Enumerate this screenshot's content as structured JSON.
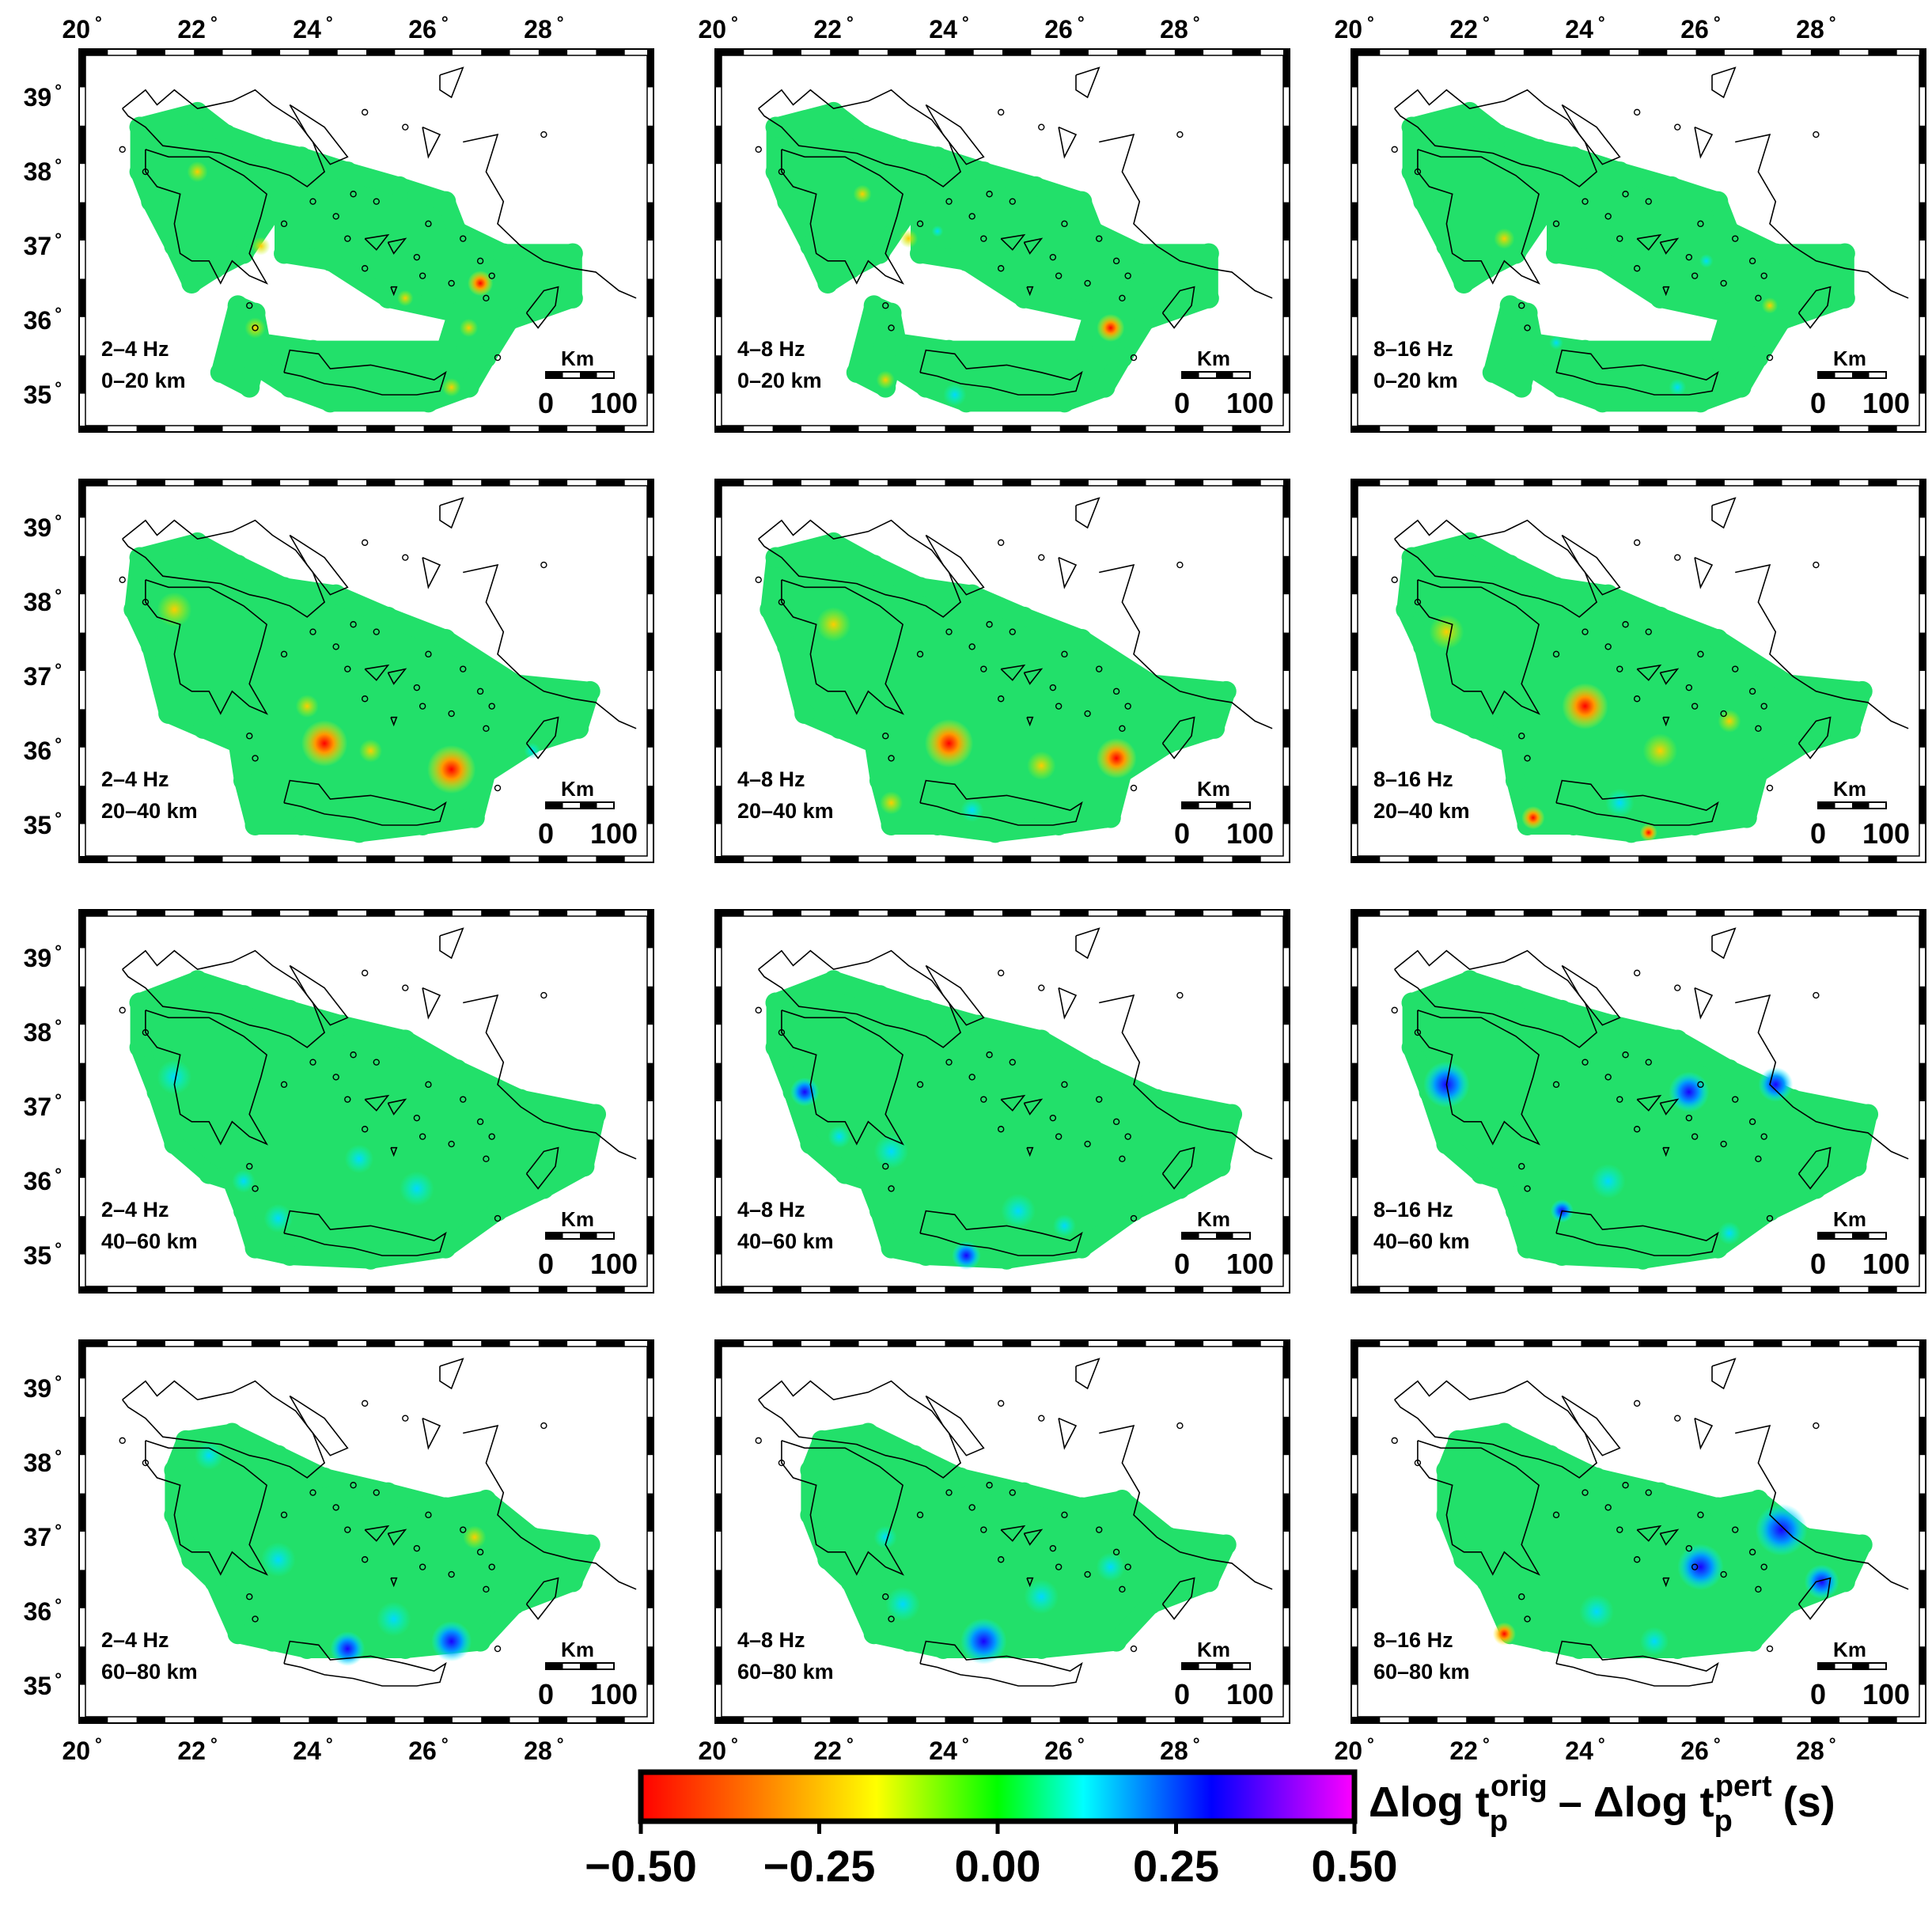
{
  "lon_ticks": [
    "20",
    "22",
    "24",
    "26",
    "28"
  ],
  "lat_ticks": [
    "39",
    "38",
    "37",
    "36",
    "35"
  ],
  "degree_symbol": "°",
  "panels": [
    {
      "band": "2–4 Hz",
      "depth": "0–20 km"
    },
    {
      "band": "4–8 Hz",
      "depth": "0–20 km"
    },
    {
      "band": "8–16 Hz",
      "depth": "0–20 km"
    },
    {
      "band": "2–4 Hz",
      "depth": "20–40 km"
    },
    {
      "band": "4–8 Hz",
      "depth": "20–40 km"
    },
    {
      "band": "8–16 Hz",
      "depth": "20–40 km"
    },
    {
      "band": "2–4 Hz",
      "depth": "40–60 km"
    },
    {
      "band": "4–8 Hz",
      "depth": "40–60 km"
    },
    {
      "band": "8–16 Hz",
      "depth": "40–60 km"
    },
    {
      "band": "2–4 Hz",
      "depth": "60–80 km"
    },
    {
      "band": "4–8 Hz",
      "depth": "60–80 km"
    },
    {
      "band": "8–16 Hz",
      "depth": "60–80 km"
    }
  ],
  "scale_bar": {
    "unit": "Km",
    "label_start": "0",
    "label_end": "100"
  },
  "colorbar": {
    "label_main": "Δlog t",
    "sub": "p",
    "sup_orig": "orig",
    "minus": "–",
    "sup_pert": "pert",
    "unit": "(s)",
    "ticks": [
      "−0.50",
      "−0.25",
      "0.00",
      "0.25",
      "0.50"
    ],
    "colors": [
      "#ff0000",
      "#ff8000",
      "#ffff00",
      "#00ff00",
      "#00ffff",
      "#0000ff",
      "#ff00ff"
    ]
  },
  "map_colors": {
    "base": "#22e06a",
    "land_outline": "#000000"
  }
}
